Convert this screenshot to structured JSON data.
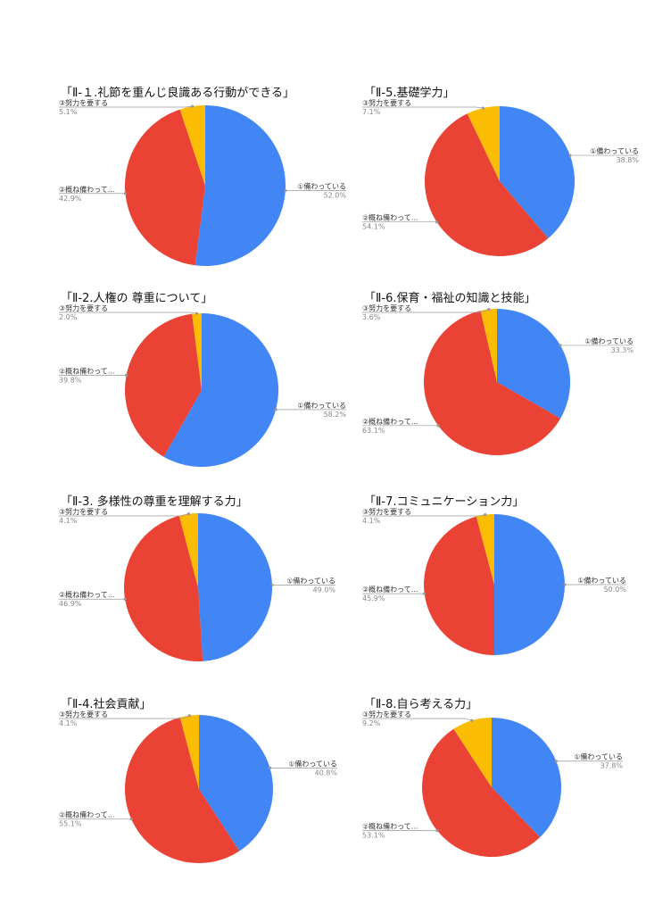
{
  "colors": {
    "blue": "#4285F4",
    "red": "#EA4335",
    "yellow": "#FBBC04"
  },
  "chart_data": [
    {
      "type": "pie",
      "title": "「Ⅱ-１.礼節を重んじ良識ある行動ができる」",
      "labels": [
        "①備わっている",
        "②概ね備わって...",
        "③努力を要する"
      ],
      "values": [
        52.0,
        42.9,
        5.1
      ],
      "value_labels": [
        "52.0%",
        "42.9%",
        "5.1%"
      ]
    },
    {
      "type": "pie",
      "title": "「Ⅱ-5.基礎学力」",
      "labels": [
        "①備わっている",
        "②概ね備わって...",
        "③努力を要する"
      ],
      "values": [
        38.8,
        54.1,
        7.1
      ],
      "value_labels": [
        "38.8%",
        "54.1%",
        "7.1%"
      ]
    },
    {
      "type": "pie",
      "title": "「Ⅱ-2.人権の 尊重について」",
      "labels": [
        "①備わっている",
        "②概ね備わって...",
        "③努力を要する"
      ],
      "values": [
        58.2,
        39.8,
        2.0
      ],
      "value_labels": [
        "58.2%",
        "39.8%",
        "2.0%"
      ]
    },
    {
      "type": "pie",
      "title": "「Ⅱ-6.保育・福祉の知識と技能」",
      "labels": [
        "①備わっている",
        "②概ね備わって...",
        "③努力を要する"
      ],
      "values": [
        33.3,
        63.1,
        3.6
      ],
      "value_labels": [
        "33.3%",
        "63.1%",
        "3.6%"
      ]
    },
    {
      "type": "pie",
      "title": "「Ⅱ-3. 多様性の尊重を理解する力」",
      "labels": [
        "①備わっている",
        "②概ね備わって...",
        "③努力を要する"
      ],
      "values": [
        49.0,
        46.9,
        4.1
      ],
      "value_labels": [
        "49.0%",
        "46.9%",
        "4.1%"
      ]
    },
    {
      "type": "pie",
      "title": "「Ⅱ-7.コミュニケーション力」",
      "labels": [
        "①備わっている",
        "②概ね備わって...",
        "③努力を要する"
      ],
      "values": [
        50.0,
        45.9,
        4.1
      ],
      "value_labels": [
        "50.0%",
        "45.9%",
        "4.1%"
      ]
    },
    {
      "type": "pie",
      "title": "「Ⅱ-4.社会貢献」",
      "labels": [
        "①備わっている",
        "②概ね備わって...",
        "③努力を要する"
      ],
      "values": [
        40.8,
        55.1,
        4.1
      ],
      "value_labels": [
        "40.8%",
        "55.1%",
        "4.1%"
      ]
    },
    {
      "type": "pie",
      "title": "「Ⅱ-8.自ら考える力」",
      "labels": [
        "①備わっている",
        "②概ね備わって...",
        "③努力を要する"
      ],
      "values": [
        37.8,
        53.1,
        9.2
      ],
      "value_labels": [
        "37.8%",
        "53.1%",
        "9.2%"
      ]
    }
  ]
}
